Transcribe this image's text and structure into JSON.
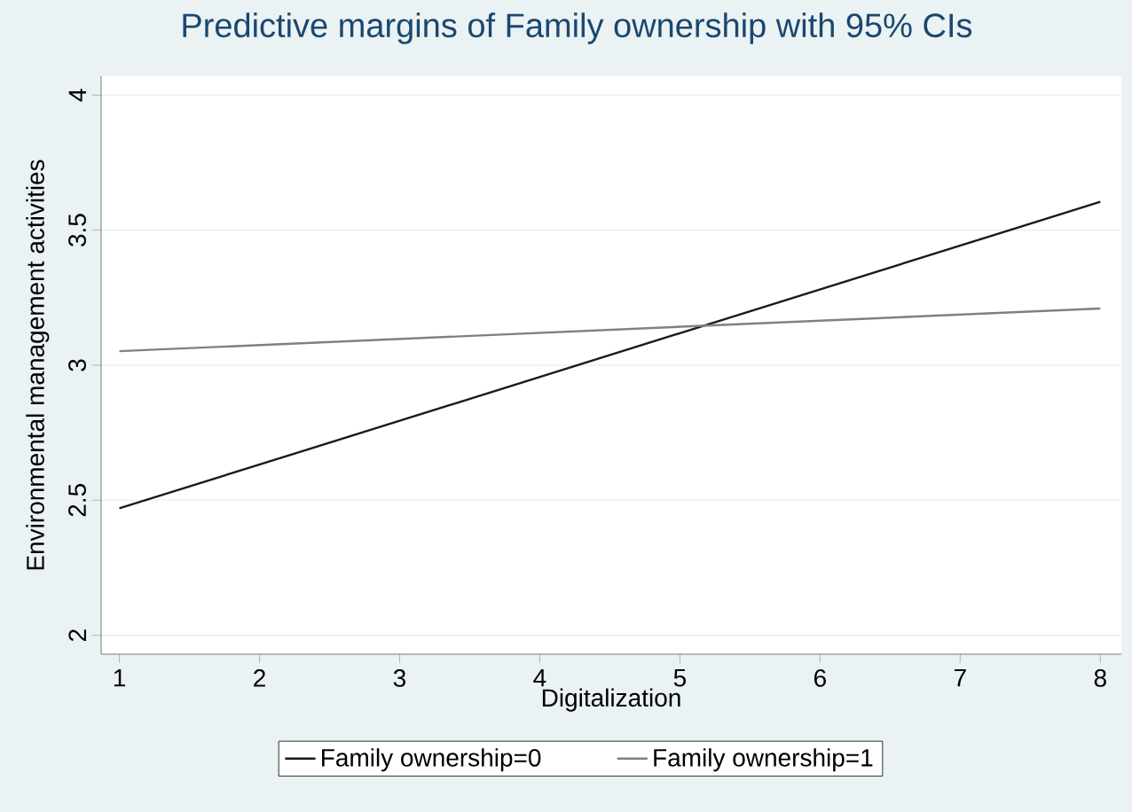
{
  "chart_data": {
    "type": "line",
    "title": "Predictive margins of Family ownership with 95% CIs",
    "xlabel": "Digitalization",
    "ylabel": "Environmental management activities",
    "x": [
      1,
      8
    ],
    "series": [
      {
        "name": "Family ownership=0",
        "color": "#1a1a1a",
        "values": [
          2.47,
          3.605
        ]
      },
      {
        "name": "Family ownership=1",
        "color": "#808080",
        "values": [
          3.052,
          3.21
        ]
      }
    ],
    "xlim": [
      0.87,
      8.15
    ],
    "ylim": [
      1.93,
      4.07
    ],
    "xticks": [
      1,
      2,
      3,
      4,
      5,
      6,
      7,
      8
    ],
    "yticks": [
      2,
      2.5,
      3,
      3.5,
      4
    ],
    "grid": "y",
    "legend": "bottom"
  }
}
